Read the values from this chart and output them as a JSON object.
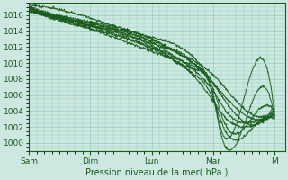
{
  "bg_color": "#cce8e0",
  "grid_color": "#99ccc0",
  "line_color": "#1a5c1a",
  "title": "Pression niveau de la mer( hPa )",
  "ylim": [
    999.0,
    1017.5
  ],
  "yticks": [
    1000,
    1002,
    1004,
    1006,
    1008,
    1010,
    1012,
    1014,
    1016
  ],
  "xtick_labels": [
    "Sam",
    "Dim",
    "Lun",
    "Mar",
    "M"
  ],
  "xtick_positions": [
    0,
    48,
    96,
    144,
    192
  ],
  "xlim": [
    0,
    200
  ],
  "figsize": [
    3.2,
    2.0
  ],
  "dpi": 100,
  "lines": [
    {
      "x": [
        0,
        60,
        96,
        130,
        144,
        158,
        192
      ],
      "y": [
        1016.8,
        1014.5,
        1012.8,
        1010.2,
        1008.5,
        1006.0,
        1004.2
      ]
    },
    {
      "x": [
        0,
        60,
        96,
        130,
        144,
        158,
        192
      ],
      "y": [
        1016.5,
        1014.2,
        1012.5,
        1009.8,
        1007.5,
        1005.0,
        1003.8
      ]
    },
    {
      "x": [
        0,
        60,
        96,
        130,
        144,
        155,
        170,
        192
      ],
      "y": [
        1016.6,
        1014.0,
        1012.0,
        1009.0,
        1006.5,
        1003.8,
        1002.5,
        1003.5
      ]
    },
    {
      "x": [
        0,
        60,
        96,
        130,
        144,
        152,
        165,
        192
      ],
      "y": [
        1016.7,
        1013.8,
        1011.8,
        1008.5,
        1005.5,
        1002.0,
        1000.5,
        1003.0
      ]
    },
    {
      "x": [
        0,
        60,
        96,
        130,
        144,
        150,
        162,
        192
      ],
      "y": [
        1016.9,
        1014.3,
        1012.2,
        1009.2,
        1005.8,
        1001.2,
        999.9,
        1003.2
      ]
    },
    {
      "x": [
        0,
        60,
        96,
        130,
        144,
        150,
        160,
        192
      ],
      "y": [
        1017.0,
        1014.6,
        1012.6,
        1009.5,
        1006.0,
        1001.8,
        1001.5,
        1003.6
      ]
    },
    {
      "x": [
        0,
        60,
        96,
        130,
        144,
        153,
        168,
        192
      ],
      "y": [
        1017.1,
        1014.8,
        1013.0,
        1009.8,
        1006.8,
        1002.5,
        1001.8,
        1004.0
      ]
    },
    {
      "x": [
        0,
        60,
        96,
        130,
        144,
        156,
        175,
        192
      ],
      "y": [
        1016.4,
        1013.6,
        1011.5,
        1008.2,
        1005.2,
        1002.8,
        1002.2,
        1003.4
      ]
    },
    {
      "x": [
        0,
        60,
        96,
        130,
        144,
        192
      ],
      "y": [
        1017.2,
        1015.0,
        1013.2,
        1010.5,
        1007.5,
        1004.8
      ]
    }
  ]
}
